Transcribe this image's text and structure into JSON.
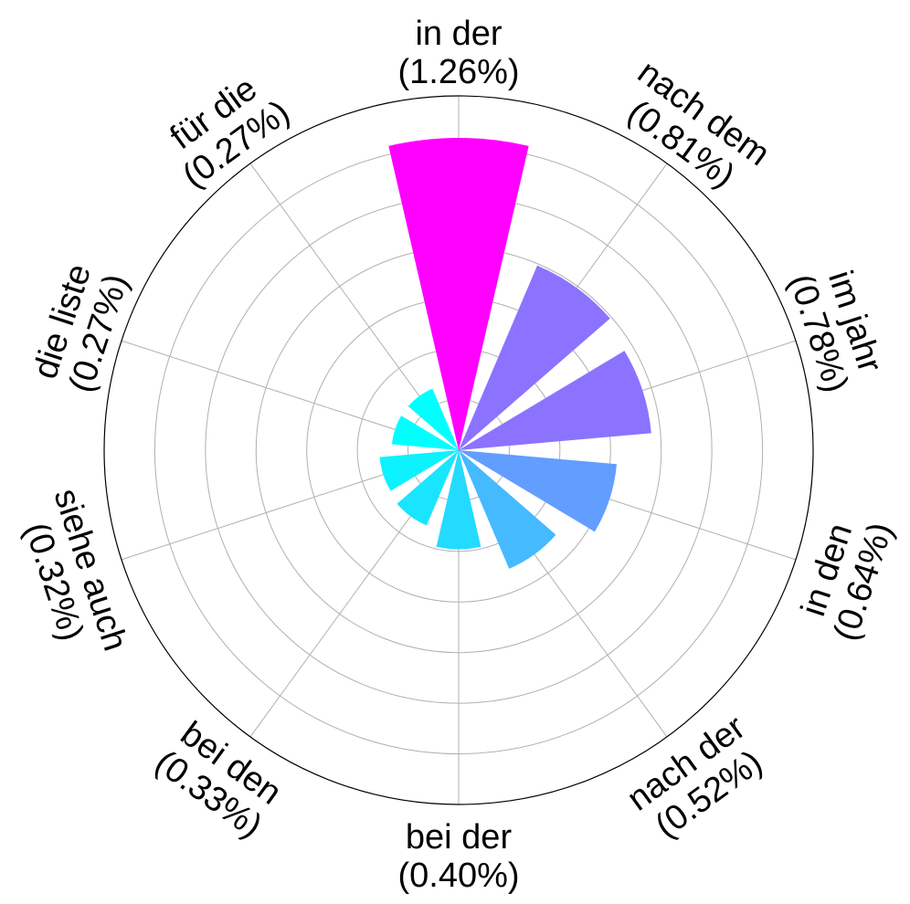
{
  "chart_data": {
    "type": "bar",
    "polar": true,
    "title": "",
    "categories": [
      "in der",
      "nach dem",
      "im jahr",
      "in den",
      "nach der",
      "bei der",
      "bei den",
      "siehe auch",
      "die liste",
      "für die"
    ],
    "labels": [
      "(1.26%)",
      "(0.81%)",
      "(0.78%)",
      "(0.64%)",
      "(0.52%)",
      "(0.40%)",
      "(0.33%)",
      "(0.32%)",
      "(0.27%)",
      "(0.27%)"
    ],
    "values": [
      1.26,
      0.81,
      0.78,
      0.64,
      0.52,
      0.4,
      0.33,
      0.32,
      0.27,
      0.27
    ],
    "colors": [
      "#ff00ff",
      "#8c73ff",
      "#8c73ff",
      "#619eff",
      "#45baff",
      "#24dbff",
      "#1ae5ff",
      "#0df2ff",
      "#00ffff",
      "#00ffff"
    ],
    "grid": true,
    "legend": "none"
  }
}
